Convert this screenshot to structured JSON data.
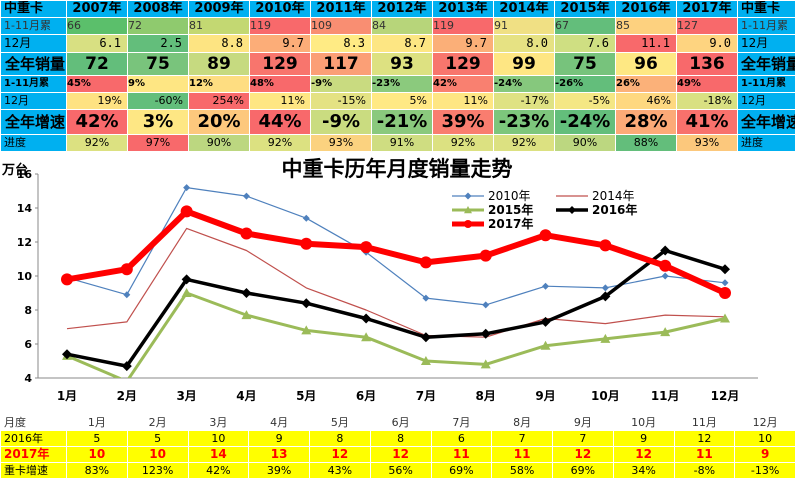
{
  "top_table": {
    "header": {
      "label": "中重卡",
      "years": [
        "2007年",
        "2008年",
        "2009年",
        "2010年",
        "2011年",
        "2012年",
        "2013年",
        "2014年",
        "2015年",
        "2016年",
        "2017年"
      ],
      "right": "中重卡"
    },
    "rows": [
      {
        "label": "1-11月累",
        "right": "1-11月累",
        "values": [
          "66",
          "72",
          "81",
          "119",
          "109",
          "84",
          "119",
          "91",
          "67",
          "85",
          "127"
        ],
        "colors": [
          "#5bbf6b",
          "#8fca6e",
          "#c3d872",
          "#f8696b",
          "#f98e72",
          "#b7d57a",
          "#f8696b",
          "#f0e084",
          "#63be7b",
          "#fdd17f",
          "#f8696b"
        ]
      },
      {
        "label": "12月",
        "right": "12月",
        "values": [
          "6.1",
          "2.5",
          "8.8",
          "9.7",
          "8.3",
          "8.7",
          "9.7",
          "8.0",
          "7.6",
          "11.1",
          "9.0"
        ],
        "colors": [
          "#d8e082",
          "#63be7b",
          "#fde482",
          "#fcad78",
          "#ffeb84",
          "#fde683",
          "#fbaf78",
          "#e6e283",
          "#cfdf82",
          "#f8696b",
          "#fed480"
        ]
      },
      {
        "label": "全年销量",
        "right": "全年销量",
        "values": [
          "72",
          "75",
          "89",
          "129",
          "117",
          "93",
          "129",
          "99",
          "75",
          "96",
          "136"
        ],
        "colors": [
          "#63be7b",
          "#79c47c",
          "#c6da80",
          "#f8756d",
          "#fb9f76",
          "#dde181",
          "#f8766d",
          "#fee683",
          "#77c37c",
          "#fee883",
          "#f8696b"
        ]
      },
      {
        "label": "1-11月累",
        "right": "1-11月累",
        "values": [
          "45%",
          "9%",
          "12%",
          "48%",
          "-9%",
          "-23%",
          "42%",
          "-24%",
          "-26%",
          "26%",
          "49%"
        ],
        "colors": [
          "#f8696b",
          "#fee683",
          "#fedd81",
          "#f8696b",
          "#c9db80",
          "#8bca7d",
          "#f98070",
          "#86c87d",
          "#63be7b",
          "#fbb179",
          "#f8696b"
        ]
      },
      {
        "label": "12月",
        "right": "12月",
        "values": [
          "19%",
          "-60%",
          "254%",
          "11%",
          "-15%",
          "5%",
          "11%",
          "-17%",
          "-5%",
          "46%",
          "-18%"
        ],
        "colors": [
          "#fee282",
          "#63be7b",
          "#f8696b",
          "#fee683",
          "#e4e283",
          "#ffe984",
          "#fee683",
          "#dfe283",
          "#f4e784",
          "#fed880",
          "#d9e082"
        ]
      },
      {
        "label": "全年增速",
        "right": "全年增速",
        "values": [
          "42%",
          "3%",
          "20%",
          "44%",
          "-9%",
          "-21%",
          "39%",
          "-23%",
          "-24%",
          "28%",
          "41%"
        ],
        "colors": [
          "#f8696b",
          "#fee784",
          "#fdc87d",
          "#f8696b",
          "#cadc80",
          "#8ac97d",
          "#f97d6f",
          "#7dc67c",
          "#63be7b",
          "#fcaa77",
          "#f8716c"
        ]
      },
      {
        "label": "进度",
        "right": "进度",
        "values": [
          "92%",
          "97%",
          "90%",
          "92%",
          "93%",
          "91%",
          "92%",
          "92%",
          "90%",
          "88%",
          "93%"
        ],
        "colors": [
          "#dce181",
          "#f8696b",
          "#bcd780",
          "#dce181",
          "#fbd27f",
          "#cfdd81",
          "#dce181",
          "#dce181",
          "#bcd780",
          "#63be7b",
          "#fcc87c"
        ]
      }
    ]
  },
  "chart_data": {
    "type": "line",
    "title": "中重卡历年月度销量走势",
    "ylabel": "万台",
    "ylim": [
      4,
      16
    ],
    "yticks": [
      "4",
      "6",
      "8",
      "10",
      "12",
      "14",
      "16"
    ],
    "categories": [
      "1月",
      "2月",
      "3月",
      "4月",
      "5月",
      "6月",
      "7月",
      "8月",
      "9月",
      "10月",
      "11月",
      "12月"
    ],
    "grid": false,
    "legend_position": "top-right",
    "series": [
      {
        "name": "2010年",
        "values": [
          9.9,
          8.9,
          15.2,
          14.7,
          13.4,
          11.4,
          8.7,
          8.3,
          9.4,
          9.3,
          10.0,
          9.6
        ],
        "color": "#4f81bd"
      },
      {
        "name": "2014年",
        "values": [
          6.9,
          7.3,
          12.8,
          11.5,
          9.3,
          8.0,
          6.5,
          6.4,
          7.5,
          7.2,
          7.7,
          7.6
        ],
        "color": "#c0504d"
      },
      {
        "name": "2015年",
        "values": [
          5.3,
          3.8,
          9.0,
          7.7,
          6.8,
          6.4,
          5.0,
          4.8,
          5.9,
          6.3,
          6.7,
          7.5
        ],
        "color": "#9bbb59"
      },
      {
        "name": "2016年",
        "values": [
          5.4,
          4.7,
          9.8,
          9.0,
          8.4,
          7.5,
          6.4,
          6.6,
          7.3,
          8.8,
          11.5,
          10.4
        ],
        "color": "#000000"
      },
      {
        "name": "2017年",
        "values": [
          9.8,
          10.4,
          13.8,
          12.5,
          11.9,
          11.7,
          10.8,
          11.2,
          12.4,
          11.8,
          10.6,
          9.0
        ],
        "color": "#ff0000"
      }
    ]
  },
  "bottom_table": {
    "month_label": "月度",
    "months": [
      "1月",
      "2月",
      "3月",
      "4月",
      "5月",
      "6月",
      "7月",
      "8月",
      "9月",
      "10月",
      "11月",
      "12月"
    ],
    "rows": [
      {
        "label": "2016年",
        "values": [
          "5",
          "5",
          "10",
          "9",
          "8",
          "8",
          "6",
          "7",
          "7",
          "9",
          "12",
          "10"
        ]
      },
      {
        "label": "2017年",
        "values": [
          "10",
          "10",
          "14",
          "13",
          "12",
          "12",
          "11",
          "11",
          "12",
          "12",
          "11",
          "9"
        ]
      },
      {
        "label": "重卡增速",
        "values": [
          "83%",
          "123%",
          "42%",
          "39%",
          "43%",
          "56%",
          "69%",
          "58%",
          "69%",
          "34%",
          "-8%",
          "-13%"
        ]
      }
    ]
  }
}
